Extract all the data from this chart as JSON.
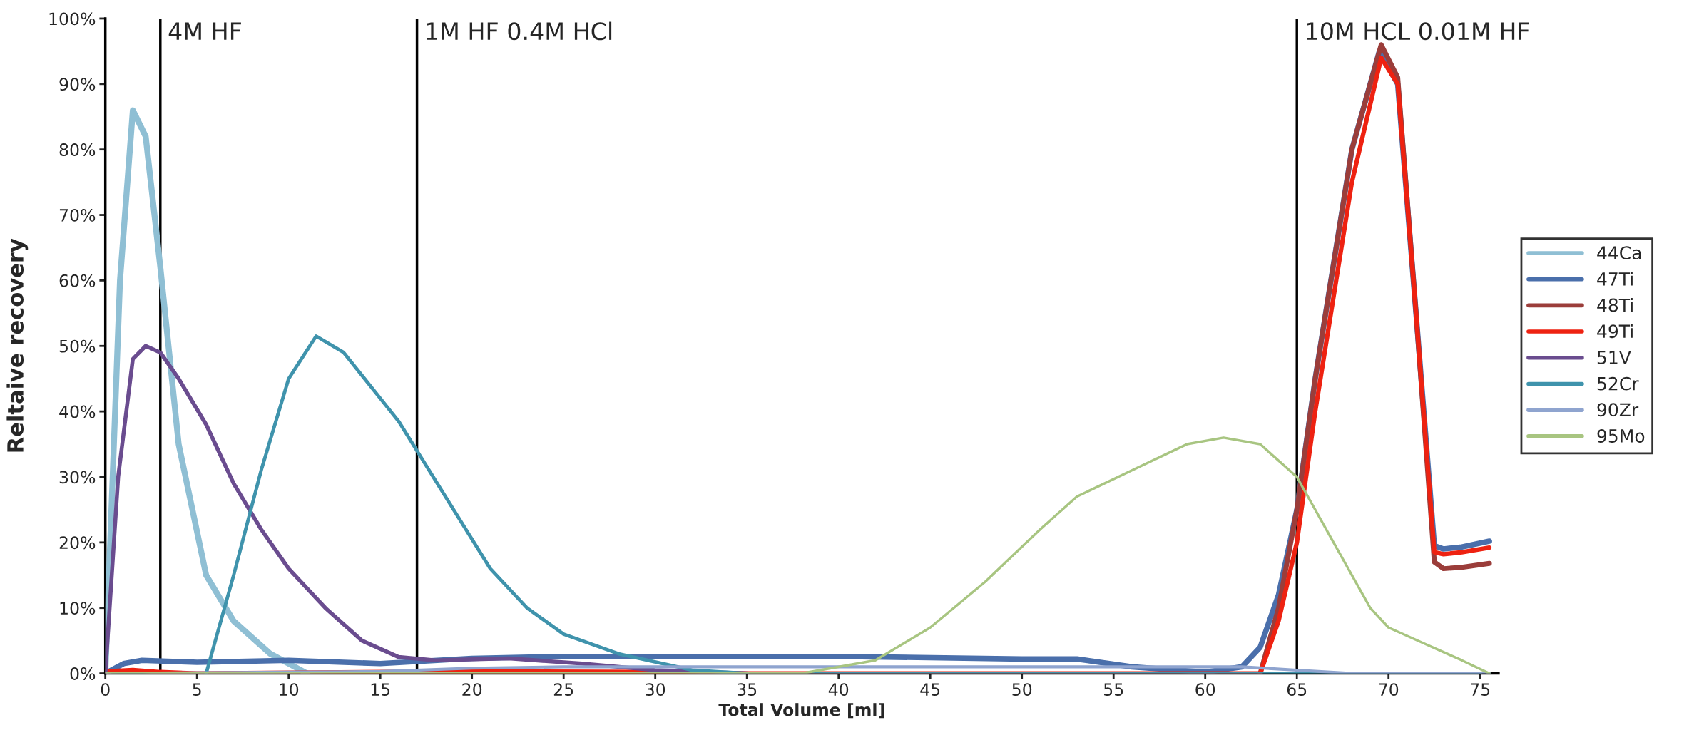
{
  "chart_data": {
    "type": "line",
    "xlabel": "Total Volume [ml]",
    "ylabel": "Reltaive recovery",
    "xlim": [
      0,
      76
    ],
    "ylim": [
      0,
      100
    ],
    "xticks": [
      0,
      5,
      10,
      15,
      20,
      25,
      30,
      35,
      40,
      45,
      50,
      55,
      60,
      65,
      70,
      75
    ],
    "yticks": [
      {
        "value": 0,
        "label": "0%"
      },
      {
        "value": 10,
        "label": "10%"
      },
      {
        "value": 20,
        "label": "20%"
      },
      {
        "value": 30,
        "label": "30%"
      },
      {
        "value": 40,
        "label": "40%"
      },
      {
        "value": 50,
        "label": "50%"
      },
      {
        "value": 60,
        "label": "60%"
      },
      {
        "value": 70,
        "label": "70%"
      },
      {
        "value": 80,
        "label": "80%"
      },
      {
        "value": 90,
        "label": "90%"
      },
      {
        "value": 100,
        "label": "100%"
      }
    ],
    "grid": false,
    "legend": "right",
    "marker": "none",
    "line_style": "solid",
    "ref_lines": [
      {
        "axis": "x",
        "value": 3,
        "label": "4M HF",
        "color": "#000000"
      },
      {
        "axis": "x",
        "value": 17,
        "label": "1M HF 0.4M HCl",
        "color": "#000000"
      },
      {
        "axis": "x",
        "value": 65,
        "label": "10M HCL 0.01M HF",
        "color": "#000000"
      }
    ],
    "series": [
      {
        "name": "44Ca",
        "color": "#8fbfd4",
        "x": [
          0,
          0.8,
          1.5,
          2.2,
          3,
          4,
          5.5,
          7,
          9,
          11
        ],
        "values": [
          0,
          60,
          86,
          82,
          62,
          35,
          15,
          8,
          3,
          0
        ]
      },
      {
        "name": "47Ti",
        "color": "#4a6fab",
        "x": [
          0,
          1,
          2,
          5,
          10,
          15,
          20,
          25,
          40,
          50,
          53,
          56,
          60,
          62,
          63,
          64,
          65,
          66,
          68,
          69.5,
          70.5,
          71.5,
          72.5,
          73,
          74,
          75.5
        ],
        "values": [
          0,
          1.5,
          2,
          1.7,
          2,
          1.5,
          2.3,
          2.6,
          2.6,
          2.2,
          2.2,
          1,
          0.2,
          1,
          4,
          12,
          25,
          45,
          80,
          95,
          90,
          55,
          19.5,
          19,
          19.3,
          20.2
        ]
      },
      {
        "name": "48Ti",
        "color": "#9b3d3a",
        "x": [
          63,
          64,
          65,
          66,
          68,
          69.6,
          70.5,
          71.5,
          72.5,
          73,
          74,
          75.5
        ],
        "values": [
          0,
          10,
          25,
          45,
          80,
          96,
          91,
          55,
          17,
          16,
          16.2,
          16.8
        ]
      },
      {
        "name": "49Ti",
        "color": "#ee2211",
        "x": [
          0,
          1.5,
          3,
          5,
          20,
          30,
          35,
          63,
          64,
          65,
          66,
          68,
          69.6,
          70.5,
          71.5,
          72.5,
          73,
          74,
          75.5
        ],
        "values": [
          0.3,
          0.5,
          0.2,
          0,
          0.3,
          0.2,
          0,
          0,
          8,
          20,
          40,
          75,
          94,
          90,
          55,
          18.5,
          18.2,
          18.5,
          19.2
        ]
      },
      {
        "name": "51V",
        "color": "#6a4c8f",
        "x": [
          0,
          0.7,
          1.5,
          2.2,
          3,
          4,
          5.5,
          7,
          8.5,
          10,
          12,
          14,
          16,
          18,
          22,
          26,
          30,
          35
        ],
        "values": [
          0,
          30,
          48,
          50,
          49,
          45,
          38,
          29,
          22,
          16,
          10,
          5,
          2.5,
          2,
          2.3,
          1.5,
          0.5,
          0
        ]
      },
      {
        "name": "52Cr",
        "color": "#3f93ac",
        "x": [
          5.5,
          7,
          8.5,
          10,
          11.5,
          13,
          15,
          16,
          17,
          19,
          21,
          23,
          25,
          28,
          32,
          35,
          75
        ],
        "values": [
          0,
          15,
          31,
          45,
          51.5,
          49,
          42,
          38.5,
          34,
          25,
          16,
          10,
          6,
          3,
          0.5,
          0,
          0
        ]
      },
      {
        "name": "90Zr",
        "color": "#8fa4cf",
        "x": [
          0,
          15,
          20,
          25,
          35,
          50,
          62,
          65,
          68,
          75.5
        ],
        "values": [
          0,
          0.3,
          0.8,
          1,
          1,
          1,
          1,
          0.5,
          0,
          0
        ]
      },
      {
        "name": "95Mo",
        "color": "#a8c581",
        "x": [
          0,
          38,
          42,
          45,
          48,
          51,
          53,
          56,
          59,
          61,
          63,
          65,
          67,
          69,
          70,
          72,
          74,
          75.5
        ],
        "values": [
          0,
          0,
          2,
          7,
          14,
          22,
          27,
          31,
          35,
          36,
          35,
          30,
          20,
          10,
          7,
          4.5,
          2,
          0
        ]
      }
    ]
  }
}
